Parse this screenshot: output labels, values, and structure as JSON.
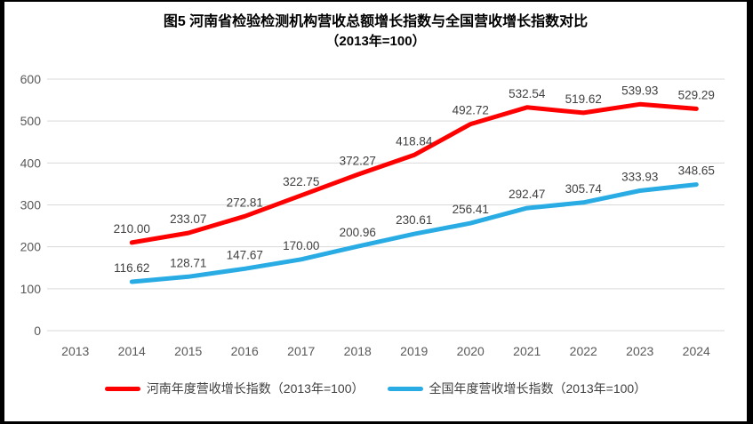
{
  "title": {
    "line1": "图5  河南省检验检测机构营收总额增长指数与全国营收增长指数对比",
    "line2": "（2013年=100）"
  },
  "chart_data": {
    "type": "line",
    "title": "图5 河南省检验检测机构营收总额增长指数与全国营收增长指数对比（2013年=100）",
    "categories": [
      "2013",
      "2014",
      "2015",
      "2016",
      "2017",
      "2018",
      "2019",
      "2020",
      "2021",
      "2022",
      "2023",
      "2024"
    ],
    "series": [
      {
        "name": "河南年度营收增长指数（2013年=100）",
        "color": "#FF0000",
        "start_index": 1,
        "values": [
          210.0,
          233.07,
          272.81,
          322.75,
          372.27,
          418.84,
          492.72,
          532.54,
          519.62,
          539.93,
          529.29
        ]
      },
      {
        "name": "全国年度营收增长指数（2013年=100）",
        "color": "#29ABE3",
        "start_index": 1,
        "values": [
          116.62,
          128.71,
          147.67,
          170.0,
          200.96,
          230.61,
          256.41,
          292.47,
          305.74,
          333.93,
          348.65
        ]
      }
    ],
    "xlabel": "",
    "ylabel": "",
    "ylim": [
      0,
      600
    ],
    "ytick_step": 100,
    "grid": true,
    "legend_position": "bottom",
    "gridline_color": "#D9D9D9",
    "axis_text_color": "#595959",
    "data_label_color": "#404040",
    "data_label_decimals": 2
  },
  "legend": {
    "items": [
      {
        "label": "河南年度营收增长指数（2013年=100）"
      },
      {
        "label": "全国年度营收增长指数（2013年=100）"
      }
    ]
  }
}
